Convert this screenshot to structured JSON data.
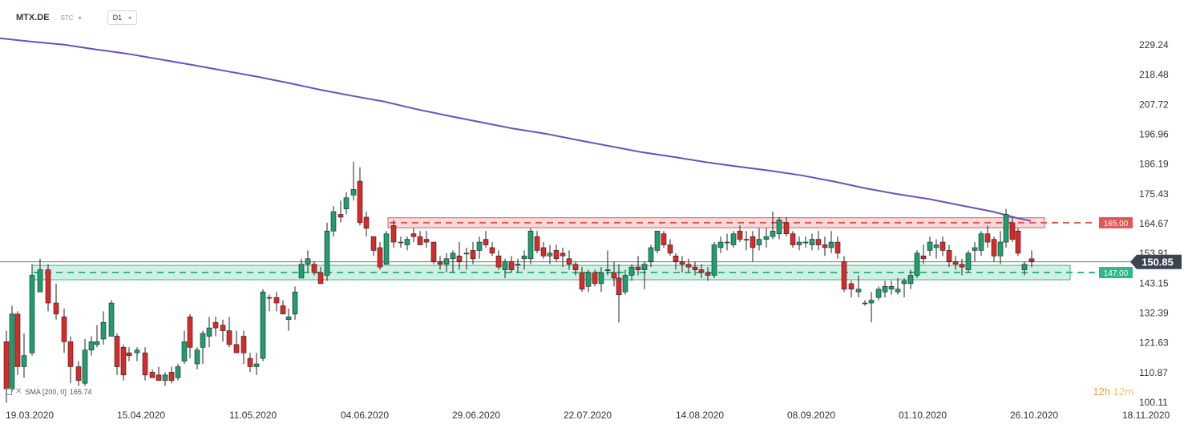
{
  "header": {
    "symbol": "MTX.DE",
    "source": "STC",
    "timeframe": "D1"
  },
  "indicator": {
    "label": "SMA [200, 0]",
    "value": "165.74"
  },
  "timer": {
    "hours": "12h",
    "minutes": "12m"
  },
  "colors": {
    "bull": "#1f9e6e",
    "bear": "#d92a2a",
    "sma": "#6a4fc4",
    "support": "#2fb88a",
    "resistance": "#e05757",
    "price_box": "#3b4450"
  },
  "icons": {
    "indicator": "doc-icon",
    "remove": "close-icon",
    "dropdown": "chevron-down-icon"
  },
  "chart_data": {
    "type": "candlestick",
    "y_axis": {
      "ticks": [
        "229.24",
        "218.48",
        "207.72",
        "196.96",
        "186.19",
        "175.43",
        "164.67",
        "153.91",
        "143.15",
        "132.39",
        "121.63",
        "110.87",
        "100.11"
      ],
      "range": [
        100.11,
        229.24
      ],
      "side": "right"
    },
    "x_axis": {
      "ticks": [
        "19.03.2020",
        "15.04.2020",
        "11.05.2020",
        "04.06.2020",
        "29.06.2020",
        "22.07.2020",
        "14.08.2020",
        "08.09.2020",
        "01.10.2020",
        "26.10.2020",
        "18.11.2020"
      ]
    },
    "current_price": "150.85",
    "levels": [
      {
        "label": "165.00",
        "value": 165.0,
        "kind": "resistance"
      },
      {
        "label": "147.00",
        "value": 147.0,
        "kind": "support"
      }
    ],
    "sma200": [
      [
        0,
        231.6
      ],
      [
        40,
        230.4
      ],
      [
        80,
        229.3
      ],
      [
        120,
        227.6
      ],
      [
        160,
        226.0
      ],
      [
        200,
        224.0
      ],
      [
        240,
        222.0
      ],
      [
        280,
        219.9
      ],
      [
        320,
        217.8
      ],
      [
        360,
        215.5
      ],
      [
        400,
        213.0
      ],
      [
        440,
        210.8
      ],
      [
        480,
        208.7
      ],
      [
        520,
        206.0
      ],
      [
        560,
        203.6
      ],
      [
        600,
        201.3
      ],
      [
        640,
        199.0
      ],
      [
        680,
        197.2
      ],
      [
        720,
        194.9
      ],
      [
        760,
        192.7
      ],
      [
        800,
        190.5
      ],
      [
        840,
        188.8
      ],
      [
        880,
        186.9
      ],
      [
        920,
        185.3
      ],
      [
        960,
        183.8
      ],
      [
        1000,
        182.1
      ],
      [
        1040,
        179.9
      ],
      [
        1080,
        177.4
      ],
      [
        1120,
        175.3
      ],
      [
        1160,
        173.5
      ],
      [
        1200,
        171.2
      ],
      [
        1240,
        168.9
      ],
      [
        1270,
        166.6
      ],
      [
        1286,
        165.7
      ]
    ],
    "candles": [
      [
        8,
        122,
        126,
        100,
        105
      ],
      [
        15,
        105,
        135,
        104,
        132
      ],
      [
        22,
        132,
        133,
        110,
        113
      ],
      [
        30,
        113,
        125,
        109,
        117
      ],
      [
        40,
        118,
        150,
        117,
        146
      ],
      [
        50,
        140,
        152,
        140,
        148
      ],
      [
        60,
        148,
        150,
        133,
        136
      ],
      [
        70,
        136,
        143,
        130,
        132
      ],
      [
        80,
        131,
        134,
        118,
        122
      ],
      [
        88,
        122,
        124,
        107,
        113
      ],
      [
        98,
        113,
        115,
        106,
        108
      ],
      [
        106,
        107,
        123,
        106,
        119
      ],
      [
        114,
        119,
        124,
        117,
        122
      ],
      [
        121,
        121,
        128,
        120,
        122
      ],
      [
        129,
        123,
        133,
        121,
        129
      ],
      [
        139,
        124,
        137,
        124,
        136
      ],
      [
        146,
        124,
        125,
        110,
        113
      ],
      [
        154,
        120,
        121,
        108,
        110
      ],
      [
        161,
        118,
        120,
        115,
        117
      ],
      [
        171,
        118,
        120,
        115,
        119
      ],
      [
        181,
        118,
        120,
        108,
        110
      ],
      [
        190,
        111,
        112,
        109,
        109
      ],
      [
        198,
        110,
        113,
        108,
        108
      ],
      [
        206,
        108,
        111,
        106,
        110
      ],
      [
        214,
        111,
        113,
        107,
        108
      ],
      [
        222,
        109,
        114,
        108,
        113
      ],
      [
        230,
        115,
        126,
        114,
        122
      ],
      [
        237,
        131,
        132,
        116,
        120
      ],
      [
        246,
        114,
        120,
        112,
        119
      ],
      [
        253,
        120,
        126,
        114,
        125
      ],
      [
        261,
        124,
        131,
        120,
        127
      ],
      [
        269,
        129,
        131,
        124,
        127
      ],
      [
        278,
        128,
        130,
        122,
        126
      ],
      [
        286,
        126,
        131,
        120,
        121
      ],
      [
        295,
        121,
        126,
        118,
        118
      ],
      [
        304,
        124,
        126,
        114,
        118
      ],
      [
        312,
        116,
        118,
        111,
        113
      ],
      [
        320,
        113,
        118,
        110,
        114
      ],
      [
        328,
        116,
        141,
        115,
        140
      ],
      [
        336,
        138,
        139,
        133,
        138
      ],
      [
        345,
        138,
        140,
        133,
        136
      ],
      [
        353,
        135,
        137,
        132,
        132
      ],
      [
        360,
        130,
        134,
        126,
        131
      ],
      [
        368,
        132,
        142,
        130,
        140
      ],
      [
        376,
        145,
        152,
        145,
        150
      ],
      [
        384,
        150,
        155,
        147,
        152
      ],
      [
        392,
        150,
        151,
        146,
        147
      ],
      [
        400,
        147,
        149,
        143,
        143
      ],
      [
        408,
        146,
        165,
        144,
        162
      ],
      [
        416,
        162,
        171,
        160,
        169
      ],
      [
        425,
        168,
        173,
        165,
        167
      ],
      [
        432,
        170,
        176,
        168,
        174
      ],
      [
        441,
        175,
        187,
        173,
        177
      ],
      [
        449,
        180,
        185,
        164,
        165
      ],
      [
        457,
        167,
        169,
        160,
        163
      ],
      [
        466,
        160,
        160,
        153,
        155
      ],
      [
        474,
        156,
        158,
        148,
        149
      ],
      [
        482,
        150,
        162,
        150,
        161
      ],
      [
        491,
        164,
        166,
        156,
        158
      ],
      [
        500,
        158,
        160,
        156,
        158
      ],
      [
        508,
        157,
        160,
        155,
        159
      ],
      [
        516,
        161,
        163,
        158,
        160
      ],
      [
        524,
        160,
        162,
        157,
        157
      ],
      [
        532,
        159,
        162,
        156,
        158
      ],
      [
        541,
        158,
        158,
        150,
        151
      ],
      [
        549,
        151,
        153,
        148,
        150
      ],
      [
        557,
        150,
        154,
        147,
        152
      ],
      [
        565,
        152,
        155,
        147,
        154
      ],
      [
        573,
        153,
        158,
        148,
        151
      ],
      [
        582,
        154,
        156,
        148,
        154
      ],
      [
        590,
        155,
        158,
        150,
        152
      ],
      [
        598,
        155,
        160,
        152,
        158
      ],
      [
        606,
        159,
        162,
        156,
        157
      ],
      [
        614,
        156,
        158,
        153,
        154
      ],
      [
        622,
        153,
        155,
        148,
        149
      ],
      [
        630,
        148,
        152,
        145,
        151
      ],
      [
        638,
        151,
        153,
        147,
        148
      ],
      [
        646,
        150,
        152,
        147,
        150
      ],
      [
        654,
        152,
        155,
        148,
        153
      ],
      [
        662,
        152,
        163,
        150,
        162
      ],
      [
        670,
        160,
        162,
        154,
        155
      ],
      [
        678,
        156,
        158,
        152,
        153
      ],
      [
        686,
        153,
        157,
        150,
        154
      ],
      [
        694,
        155,
        157,
        151,
        152
      ],
      [
        702,
        154,
        156,
        149,
        153
      ],
      [
        710,
        152,
        155,
        148,
        150
      ],
      [
        718,
        150,
        151,
        146,
        148
      ],
      [
        726,
        147,
        149,
        140,
        141
      ],
      [
        734,
        142,
        148,
        140,
        147
      ],
      [
        742,
        147,
        148,
        142,
        143
      ],
      [
        750,
        143,
        149,
        140,
        147
      ],
      [
        758,
        148,
        155,
        146,
        148
      ],
      [
        766,
        147,
        151,
        142,
        145
      ],
      [
        772,
        145,
        150,
        129,
        139
      ],
      [
        780,
        140,
        148,
        139,
        146
      ],
      [
        788,
        146,
        150,
        144,
        149
      ],
      [
        796,
        149,
        153,
        146,
        148
      ],
      [
        804,
        148,
        151,
        141,
        150
      ],
      [
        812,
        151,
        157,
        149,
        156
      ],
      [
        820,
        155,
        162,
        154,
        162
      ],
      [
        828,
        161,
        162,
        156,
        157
      ],
      [
        836,
        157,
        159,
        153,
        154
      ],
      [
        843,
        153,
        154,
        148,
        151
      ],
      [
        851,
        151,
        153,
        147,
        150
      ],
      [
        859,
        150,
        152,
        147,
        149
      ],
      [
        867,
        149,
        151,
        146,
        148
      ],
      [
        875,
        148,
        150,
        145,
        147
      ],
      [
        883,
        147,
        149,
        144,
        146
      ],
      [
        891,
        146,
        158,
        145,
        157
      ],
      [
        899,
        156,
        160,
        154,
        158
      ],
      [
        907,
        158,
        161,
        155,
        158
      ],
      [
        915,
        157,
        162,
        156,
        161
      ],
      [
        923,
        162,
        164,
        158,
        159
      ],
      [
        931,
        159,
        162,
        155,
        159
      ],
      [
        939,
        160,
        162,
        151,
        156
      ],
      [
        947,
        157,
        163,
        155,
        159
      ],
      [
        956,
        159,
        163,
        156,
        160
      ],
      [
        964,
        160,
        169,
        159,
        162
      ],
      [
        972,
        161,
        167,
        159,
        166
      ],
      [
        981,
        165,
        167,
        160,
        161
      ],
      [
        989,
        161,
        162,
        156,
        157
      ],
      [
        997,
        157,
        160,
        155,
        158
      ],
      [
        1005,
        158,
        160,
        156,
        158
      ],
      [
        1013,
        157,
        161,
        155,
        159
      ],
      [
        1021,
        159,
        162,
        155,
        157
      ],
      [
        1029,
        157,
        160,
        153,
        156
      ],
      [
        1037,
        156,
        162,
        154,
        158
      ],
      [
        1045,
        158,
        160,
        152,
        154
      ],
      [
        1053,
        151,
        153,
        140,
        141
      ],
      [
        1062,
        143,
        144,
        138,
        141
      ],
      [
        1071,
        140,
        146,
        138,
        141
      ],
      [
        1079,
        136,
        137,
        135,
        136
      ],
      [
        1087,
        136,
        140,
        129,
        137
      ],
      [
        1096,
        138,
        142,
        137,
        141
      ],
      [
        1104,
        140,
        144,
        138,
        142
      ],
      [
        1112,
        141,
        144,
        139,
        142
      ],
      [
        1120,
        140,
        145,
        139,
        141
      ],
      [
        1128,
        143,
        145,
        138,
        144
      ],
      [
        1136,
        143,
        148,
        141,
        146
      ],
      [
        1144,
        146,
        155,
        145,
        154
      ],
      [
        1152,
        153,
        157,
        150,
        152
      ],
      [
        1160,
        155,
        160,
        153,
        158
      ],
      [
        1168,
        156,
        159,
        152,
        157
      ],
      [
        1176,
        158,
        160,
        153,
        155
      ],
      [
        1184,
        155,
        157,
        149,
        151
      ],
      [
        1192,
        151,
        153,
        148,
        150
      ],
      [
        1200,
        150,
        152,
        146,
        149
      ],
      [
        1208,
        148,
        155,
        147,
        154
      ],
      [
        1216,
        155,
        158,
        151,
        156
      ],
      [
        1224,
        155,
        162,
        153,
        161
      ],
      [
        1232,
        161,
        164,
        156,
        158
      ],
      [
        1240,
        159,
        160,
        151,
        153
      ],
      [
        1248,
        153,
        162,
        150,
        158
      ],
      [
        1255,
        158,
        170,
        156,
        168
      ],
      [
        1263,
        165,
        167,
        158,
        159
      ],
      [
        1270,
        162,
        163,
        153,
        154
      ],
      [
        1278,
        148,
        151,
        146,
        150
      ],
      [
        1287,
        152,
        155,
        149,
        151
      ]
    ]
  }
}
